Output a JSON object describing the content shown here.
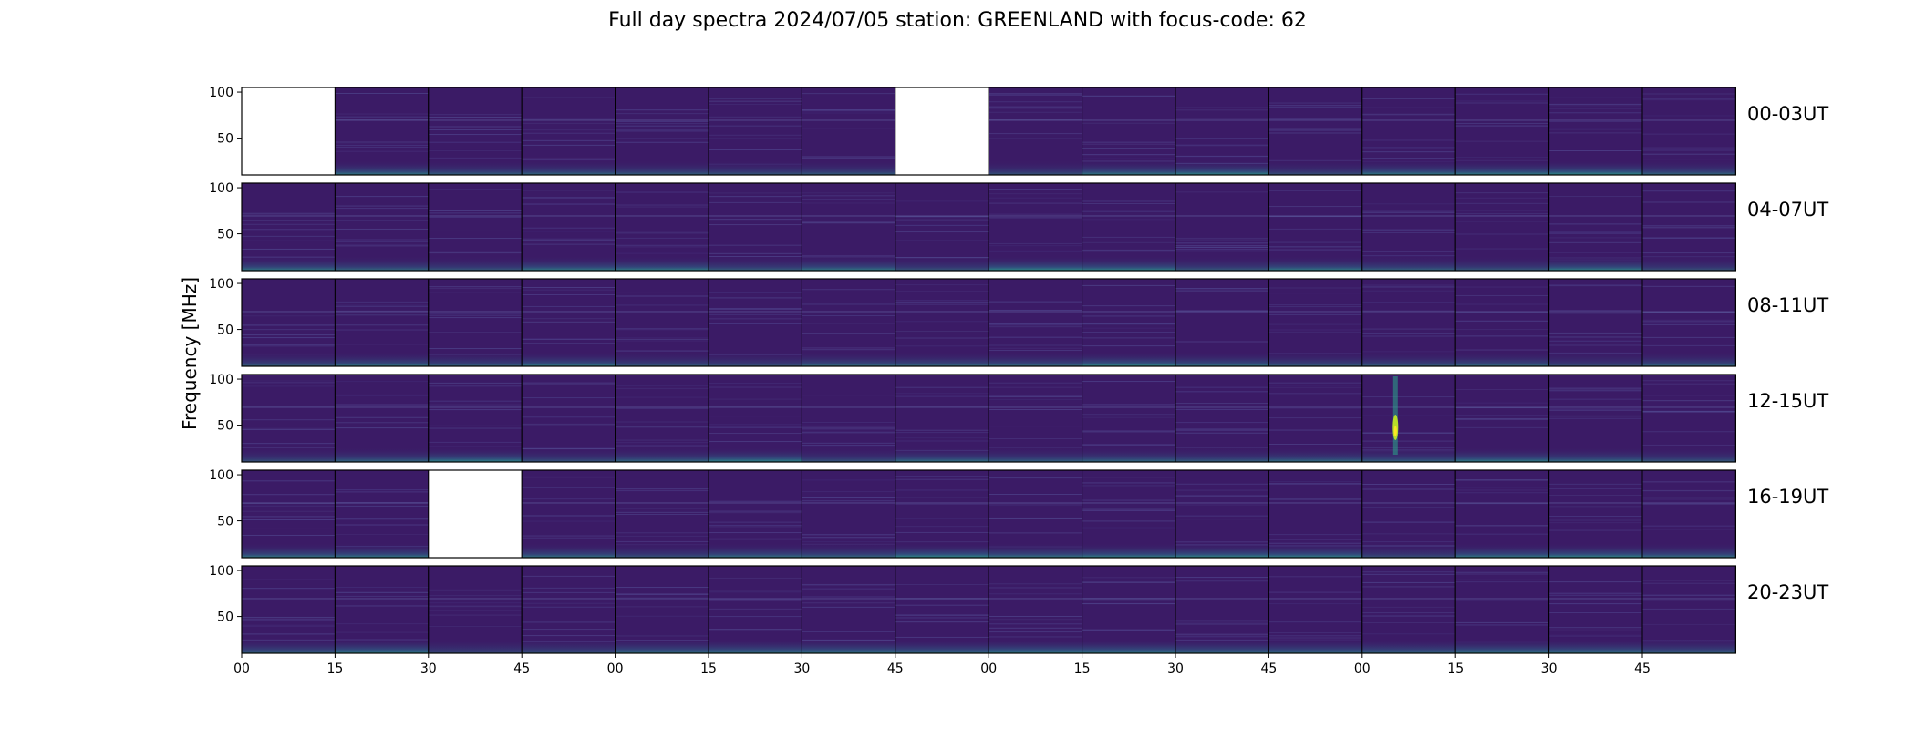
{
  "title": "Full day spectra 2024/07/05 station: GREENLAND with focus-code: 62",
  "colors": {
    "panel_bg": "#3b1b66",
    "band": "#2a9d8f",
    "line": "#4a4f8c",
    "frame": "#000000"
  },
  "chart_data": {
    "type": "heatmap",
    "title": "Full day spectra 2024/07/05 station: GREENLAND with focus-code: 62",
    "xlabel": "",
    "ylabel": "Frequency [MHz]",
    "ylim": [
      10,
      105
    ],
    "y_ticks": [
      "100",
      "50"
    ],
    "x_ticks": [
      "00",
      "15",
      "30",
      "45",
      "00",
      "15",
      "30",
      "45",
      "00",
      "15",
      "30",
      "45",
      "00",
      "15",
      "30",
      "45"
    ],
    "minutes_per_panel": 15,
    "rows": [
      {
        "label": "00-03UT",
        "missing_panels": [
          0,
          7
        ]
      },
      {
        "label": "04-07UT",
        "missing_panels": []
      },
      {
        "label": "08-11UT",
        "missing_panels": []
      },
      {
        "label": "12-15UT",
        "missing_panels": [],
        "burst_panel": 12
      },
      {
        "label": "16-19UT",
        "missing_panels": [
          2
        ]
      },
      {
        "label": "20-23UT",
        "missing_panels": []
      }
    ],
    "panels_per_row": 16
  }
}
